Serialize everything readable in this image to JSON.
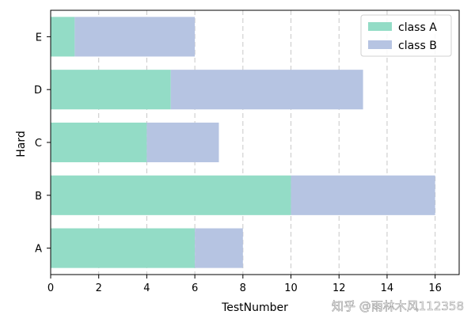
{
  "chart_data": {
    "type": "bar",
    "orientation": "horizontal",
    "stacked": true,
    "categories": [
      "A",
      "B",
      "C",
      "D",
      "E"
    ],
    "series": [
      {
        "name": "class A",
        "values": [
          6,
          10,
          4,
          5,
          1
        ],
        "color": "#93dcc6"
      },
      {
        "name": "class B",
        "values": [
          2,
          6,
          3,
          8,
          5
        ],
        "color": "#b6c4e2"
      }
    ],
    "xlabel": "TestNumber",
    "ylabel": "Hard",
    "xlim": [
      0,
      17
    ],
    "xticks": [
      0,
      2,
      4,
      6,
      8,
      10,
      12,
      14,
      16
    ],
    "grid": "x-dashed",
    "legend_position": "top-right"
  },
  "watermark": "知乎 @雨林木风112358"
}
